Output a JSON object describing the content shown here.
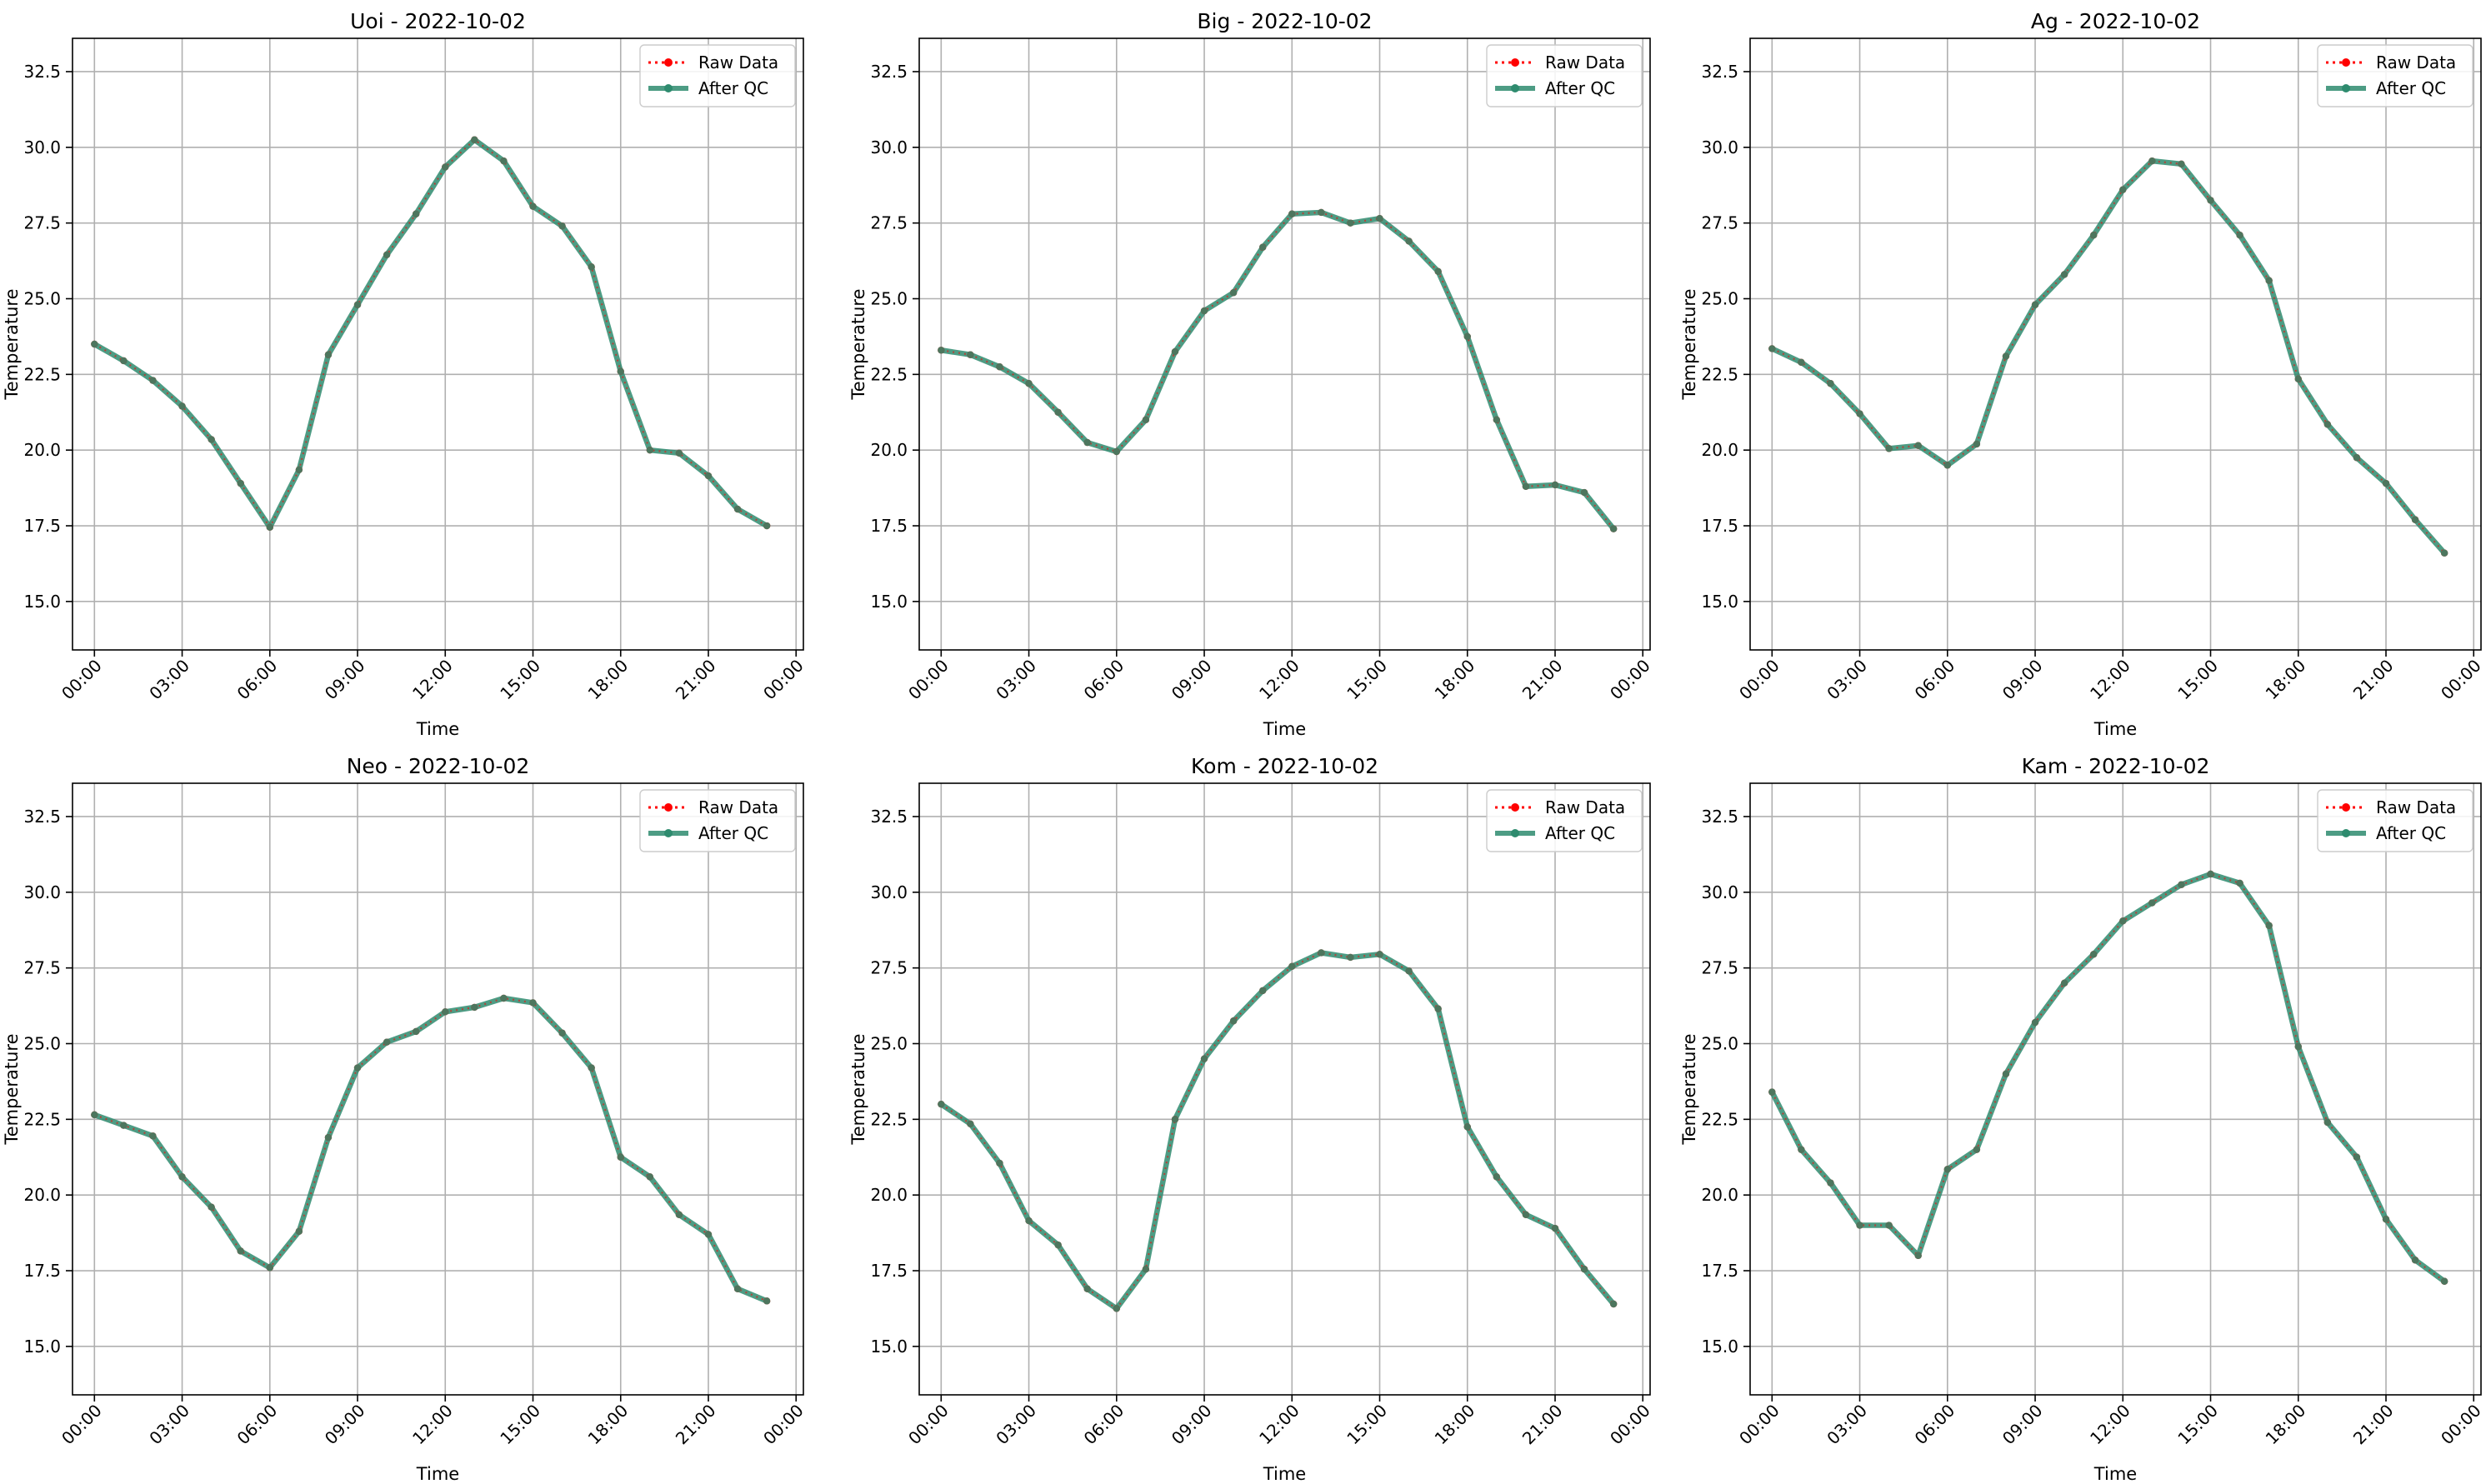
{
  "figure": {
    "xlabel": "Time",
    "ylabel": "Temperature",
    "x_ticks": [
      "00:00",
      "03:00",
      "06:00",
      "09:00",
      "12:00",
      "15:00",
      "18:00",
      "21:00",
      "00:00"
    ],
    "y_ticks": [
      "15.0",
      "17.5",
      "20.0",
      "22.5",
      "25.0",
      "27.5",
      "30.0",
      "32.5"
    ],
    "legend": {
      "raw": "Raw Data",
      "qc": "After QC"
    },
    "colors": {
      "raw": "#ff0000",
      "qc": "#2e8b6e",
      "grid": "#b0b0b0",
      "axis": "#000000"
    }
  },
  "chart_data": [
    {
      "type": "line",
      "title": "Uoi - 2022-10-02",
      "xlabel": "Time",
      "ylabel": "Temperature",
      "x": [
        "00:00",
        "01:00",
        "02:00",
        "03:00",
        "04:00",
        "05:00",
        "06:00",
        "07:00",
        "08:00",
        "09:00",
        "10:00",
        "11:00",
        "12:00",
        "13:00",
        "14:00",
        "15:00",
        "16:00",
        "17:00",
        "18:00",
        "19:00",
        "20:00",
        "21:00",
        "22:00",
        "23:00"
      ],
      "xlim": [
        "2022-10-01 23:15",
        "2022-10-03 00:15"
      ],
      "ylim": [
        13.4,
        33.6
      ],
      "grid": true,
      "legend_position": "top-right",
      "series": [
        {
          "name": "Raw Data",
          "values": [
            23.5,
            22.95,
            22.3,
            21.45,
            20.35,
            18.9,
            17.45,
            19.35,
            23.15,
            24.8,
            26.45,
            27.8,
            29.35,
            30.25,
            29.55,
            28.05,
            27.4,
            26.05,
            22.6,
            20.0,
            19.9,
            19.15,
            18.05,
            17.5
          ]
        },
        {
          "name": "After QC",
          "values": [
            23.5,
            22.95,
            22.3,
            21.45,
            20.35,
            18.9,
            17.45,
            19.35,
            23.15,
            24.8,
            26.45,
            27.8,
            29.35,
            30.25,
            29.55,
            28.05,
            27.4,
            26.05,
            22.6,
            20.0,
            19.9,
            19.15,
            18.05,
            17.5
          ]
        }
      ]
    },
    {
      "type": "line",
      "title": "Big - 2022-10-02",
      "xlabel": "Time",
      "ylabel": "Temperature",
      "x": [
        "00:00",
        "01:00",
        "02:00",
        "03:00",
        "04:00",
        "05:00",
        "06:00",
        "07:00",
        "08:00",
        "09:00",
        "10:00",
        "11:00",
        "12:00",
        "13:00",
        "14:00",
        "15:00",
        "16:00",
        "17:00",
        "18:00",
        "19:00",
        "20:00",
        "21:00",
        "22:00",
        "23:00"
      ],
      "xlim": [
        "2022-10-01 23:15",
        "2022-10-03 00:15"
      ],
      "ylim": [
        13.4,
        33.6
      ],
      "grid": true,
      "legend_position": "top-right",
      "series": [
        {
          "name": "Raw Data",
          "values": [
            23.3,
            23.15,
            22.75,
            22.2,
            21.25,
            20.25,
            19.95,
            21.0,
            23.25,
            24.6,
            25.2,
            26.7,
            27.8,
            27.85,
            27.5,
            27.65,
            26.9,
            25.9,
            23.75,
            21.0,
            18.8,
            18.85,
            18.6,
            17.4
          ]
        },
        {
          "name": "After QC",
          "values": [
            23.3,
            23.15,
            22.75,
            22.2,
            21.25,
            20.25,
            19.95,
            21.0,
            23.25,
            24.6,
            25.2,
            26.7,
            27.8,
            27.85,
            27.5,
            27.65,
            26.9,
            25.9,
            23.75,
            21.0,
            18.8,
            18.85,
            18.6,
            17.4
          ]
        }
      ]
    },
    {
      "type": "line",
      "title": "Ag - 2022-10-02",
      "xlabel": "Time",
      "ylabel": "Temperature",
      "x": [
        "00:00",
        "01:00",
        "02:00",
        "03:00",
        "04:00",
        "05:00",
        "06:00",
        "07:00",
        "08:00",
        "09:00",
        "10:00",
        "11:00",
        "12:00",
        "13:00",
        "14:00",
        "15:00",
        "16:00",
        "17:00",
        "18:00",
        "19:00",
        "20:00",
        "21:00",
        "22:00",
        "23:00"
      ],
      "xlim": [
        "2022-10-01 23:15",
        "2022-10-03 00:15"
      ],
      "ylim": [
        13.4,
        33.6
      ],
      "grid": true,
      "legend_position": "top-right",
      "series": [
        {
          "name": "Raw Data",
          "values": [
            23.35,
            22.9,
            22.2,
            21.2,
            20.05,
            20.15,
            19.5,
            20.2,
            23.1,
            24.8,
            25.8,
            27.1,
            28.6,
            29.55,
            29.45,
            28.25,
            27.1,
            25.6,
            22.35,
            20.85,
            19.75,
            18.9,
            17.7,
            16.6
          ]
        },
        {
          "name": "After QC",
          "values": [
            23.35,
            22.9,
            22.2,
            21.2,
            20.05,
            20.15,
            19.5,
            20.2,
            23.1,
            24.8,
            25.8,
            27.1,
            28.6,
            29.55,
            29.45,
            28.25,
            27.1,
            25.6,
            22.35,
            20.85,
            19.75,
            18.9,
            17.7,
            16.6
          ]
        }
      ]
    },
    {
      "type": "line",
      "title": "Neo - 2022-10-02",
      "xlabel": "Time",
      "ylabel": "Temperature",
      "x": [
        "00:00",
        "01:00",
        "02:00",
        "03:00",
        "04:00",
        "05:00",
        "06:00",
        "07:00",
        "08:00",
        "09:00",
        "10:00",
        "11:00",
        "12:00",
        "13:00",
        "14:00",
        "15:00",
        "16:00",
        "17:00",
        "18:00",
        "19:00",
        "20:00",
        "21:00",
        "22:00",
        "23:00"
      ],
      "xlim": [
        "2022-10-01 23:15",
        "2022-10-03 00:15"
      ],
      "ylim": [
        13.4,
        33.6
      ],
      "grid": true,
      "legend_position": "top-right",
      "series": [
        {
          "name": "Raw Data",
          "values": [
            22.65,
            22.3,
            21.95,
            20.6,
            19.6,
            18.15,
            17.6,
            18.8,
            21.9,
            24.2,
            25.05,
            25.4,
            26.05,
            26.2,
            26.5,
            26.35,
            25.35,
            24.2,
            21.25,
            20.6,
            19.35,
            18.7,
            16.9,
            16.5
          ]
        },
        {
          "name": "After QC",
          "values": [
            22.65,
            22.3,
            21.95,
            20.6,
            19.6,
            18.15,
            17.6,
            18.8,
            21.9,
            24.2,
            25.05,
            25.4,
            26.05,
            26.2,
            26.5,
            26.35,
            25.35,
            24.2,
            21.25,
            20.6,
            19.35,
            18.7,
            16.9,
            16.5
          ]
        }
      ]
    },
    {
      "type": "line",
      "title": "Kom - 2022-10-02",
      "xlabel": "Time",
      "ylabel": "Temperature",
      "x": [
        "00:00",
        "01:00",
        "02:00",
        "03:00",
        "04:00",
        "05:00",
        "06:00",
        "07:00",
        "08:00",
        "09:00",
        "10:00",
        "11:00",
        "12:00",
        "13:00",
        "14:00",
        "15:00",
        "16:00",
        "17:00",
        "18:00",
        "19:00",
        "20:00",
        "21:00",
        "22:00",
        "23:00"
      ],
      "xlim": [
        "2022-10-01 23:15",
        "2022-10-03 00:15"
      ],
      "ylim": [
        13.4,
        33.6
      ],
      "grid": true,
      "legend_position": "top-right",
      "series": [
        {
          "name": "Raw Data",
          "values": [
            23.0,
            22.35,
            21.05,
            19.15,
            18.35,
            16.9,
            16.25,
            17.55,
            22.5,
            24.5,
            25.75,
            26.75,
            27.55,
            28.0,
            27.85,
            27.95,
            27.4,
            26.15,
            22.25,
            20.6,
            19.35,
            18.9,
            17.55,
            16.4
          ]
        },
        {
          "name": "After QC",
          "values": [
            23.0,
            22.35,
            21.05,
            19.15,
            18.35,
            16.9,
            16.25,
            17.55,
            22.5,
            24.5,
            25.75,
            26.75,
            27.55,
            28.0,
            27.85,
            27.95,
            27.4,
            26.15,
            22.25,
            20.6,
            19.35,
            18.9,
            17.55,
            16.4
          ]
        }
      ]
    },
    {
      "type": "line",
      "title": "Kam - 2022-10-02",
      "xlabel": "Time",
      "ylabel": "Temperature",
      "x": [
        "00:00",
        "01:00",
        "02:00",
        "03:00",
        "04:00",
        "05:00",
        "06:00",
        "07:00",
        "08:00",
        "09:00",
        "10:00",
        "11:00",
        "12:00",
        "13:00",
        "14:00",
        "15:00",
        "16:00",
        "17:00",
        "18:00",
        "19:00",
        "20:00",
        "21:00",
        "22:00",
        "23:00"
      ],
      "xlim": [
        "2022-10-01 23:15",
        "2022-10-03 00:15"
      ],
      "ylim": [
        13.4,
        33.6
      ],
      "grid": true,
      "legend_position": "top-right",
      "series": [
        {
          "name": "Raw Data",
          "values": [
            23.4,
            21.5,
            20.4,
            19.0,
            19.0,
            18.0,
            20.85,
            21.5,
            24.0,
            25.7,
            27.0,
            27.95,
            29.05,
            29.65,
            30.25,
            30.6,
            30.3,
            28.9,
            24.9,
            22.4,
            21.25,
            19.2,
            17.85,
            17.15
          ]
        },
        {
          "name": "After QC",
          "values": [
            23.4,
            21.5,
            20.4,
            19.0,
            19.0,
            18.0,
            20.85,
            21.5,
            24.0,
            25.7,
            27.0,
            27.95,
            29.05,
            29.65,
            30.25,
            30.6,
            30.3,
            28.9,
            24.9,
            22.4,
            21.25,
            19.2,
            17.85,
            17.15
          ]
        }
      ]
    }
  ]
}
